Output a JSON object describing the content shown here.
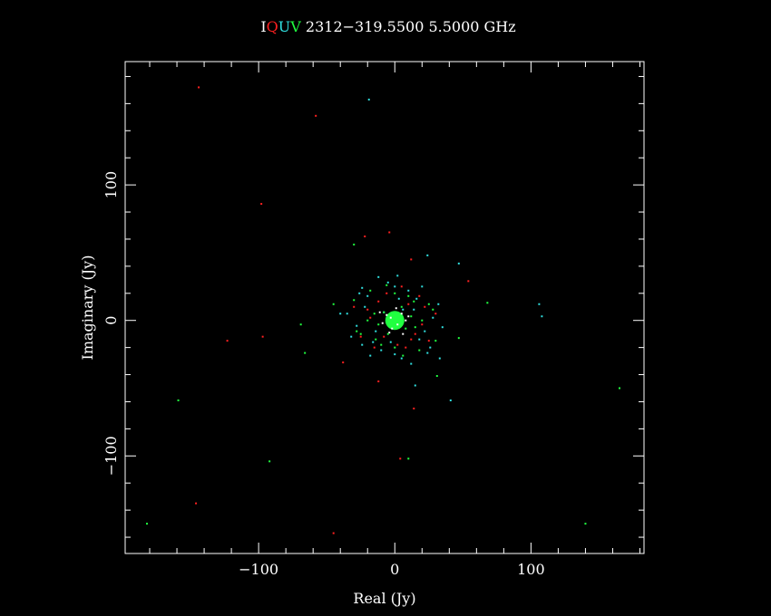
{
  "chart_data": {
    "type": "scatter",
    "title_parts": [
      {
        "text": "I",
        "color": "#ffffff"
      },
      {
        "text": "Q",
        "color": "#ff2020"
      },
      {
        "text": "U",
        "color": "#30e0e0"
      },
      {
        "text": "V",
        "color": "#20ff40"
      },
      {
        "text": " 2312−319.5500 5.5000 GHz",
        "color": "#ffffff"
      }
    ],
    "xlabel": "Real (Jy)",
    "ylabel": "Imaginary (Jy)",
    "xlim": [
      -198,
      183
    ],
    "ylim": [
      -172,
      191
    ],
    "x_ticks": [
      {
        "v": -100,
        "label": "−100"
      },
      {
        "v": 0,
        "label": "0"
      },
      {
        "v": 100,
        "label": "100"
      }
    ],
    "y_ticks": [
      {
        "v": -100,
        "label": "−100"
      },
      {
        "v": 0,
        "label": "0"
      },
      {
        "v": 100,
        "label": "100"
      }
    ],
    "minor_step": 20,
    "grid": false,
    "series": [
      {
        "name": "I",
        "color": "#ffffff",
        "points": [
          [
            -3,
            2
          ],
          [
            2,
            -3
          ],
          [
            -6,
            4
          ],
          [
            5,
            5
          ],
          [
            -2,
            -6
          ],
          [
            8,
            0
          ],
          [
            -9,
            -2
          ],
          [
            1,
            9
          ],
          [
            -4,
            -9
          ],
          [
            10,
            3
          ],
          [
            -11,
            6
          ],
          [
            6,
            -10
          ]
        ]
      },
      {
        "name": "Q",
        "color": "#ff2020",
        "points": [
          [
            -144,
            172
          ],
          [
            -58,
            151
          ],
          [
            -98,
            86
          ],
          [
            -22,
            62
          ],
          [
            -4,
            65
          ],
          [
            12,
            45
          ],
          [
            54,
            29
          ],
          [
            -123,
            -15
          ],
          [
            -97,
            -12
          ],
          [
            -38,
            -31
          ],
          [
            -12,
            -45
          ],
          [
            14,
            -65
          ],
          [
            4,
            -102
          ],
          [
            -146,
            -135
          ],
          [
            -45,
            -157
          ],
          [
            -20,
            8
          ],
          [
            15,
            -10
          ],
          [
            22,
            10
          ],
          [
            8,
            -20
          ],
          [
            -25,
            -12
          ],
          [
            30,
            5
          ],
          [
            -6,
            20
          ],
          [
            18,
            18
          ],
          [
            -15,
            -20
          ],
          [
            5,
            25
          ],
          [
            25,
            -15
          ],
          [
            -30,
            10
          ],
          [
            10,
            12
          ],
          [
            -12,
            14
          ],
          [
            12,
            -14
          ],
          [
            2,
            -18
          ],
          [
            -18,
            2
          ],
          [
            20,
            -3
          ],
          [
            -8,
            -12
          ]
        ]
      },
      {
        "name": "U",
        "color": "#30e0e0",
        "points": [
          [
            -19,
            163
          ],
          [
            24,
            48
          ],
          [
            47,
            42
          ],
          [
            2,
            33
          ],
          [
            106,
            12
          ],
          [
            108,
            3
          ],
          [
            -24,
            -18
          ],
          [
            -40,
            5
          ],
          [
            33,
            -28
          ],
          [
            15,
            -48
          ],
          [
            41,
            -59
          ],
          [
            -20,
            18
          ],
          [
            18,
            -14
          ],
          [
            28,
            2
          ],
          [
            -28,
            -4
          ],
          [
            10,
            22
          ],
          [
            -10,
            -22
          ],
          [
            -22,
            10
          ],
          [
            22,
            -8
          ],
          [
            5,
            -28
          ],
          [
            -5,
            28
          ],
          [
            16,
            16
          ],
          [
            -16,
            -16
          ],
          [
            32,
            12
          ],
          [
            -32,
            -12
          ],
          [
            12,
            -32
          ],
          [
            -12,
            32
          ],
          [
            26,
            -20
          ],
          [
            -26,
            20
          ],
          [
            6,
            8
          ],
          [
            -8,
            6
          ],
          [
            35,
            -5
          ],
          [
            -35,
            5
          ],
          [
            0,
            -25
          ],
          [
            0,
            25
          ],
          [
            20,
            25
          ],
          [
            -18,
            -26
          ],
          [
            14,
            8
          ],
          [
            -14,
            -8
          ],
          [
            3,
            16
          ],
          [
            -3,
            -16
          ],
          [
            24,
            -24
          ],
          [
            -24,
            24
          ]
        ]
      },
      {
        "name": "V",
        "color": "#20ff40",
        "points": [
          [
            -30,
            56
          ],
          [
            68,
            13
          ],
          [
            -69,
            -3
          ],
          [
            -66,
            -24
          ],
          [
            47,
            -13
          ],
          [
            31,
            -41
          ],
          [
            10,
            -102
          ],
          [
            -159,
            -59
          ],
          [
            -92,
            -104
          ],
          [
            -182,
            -150
          ],
          [
            140,
            -150
          ],
          [
            165,
            -50
          ],
          [
            -45,
            12
          ],
          [
            -15,
            5
          ],
          [
            15,
            -5
          ],
          [
            25,
            12
          ],
          [
            -25,
            -10
          ],
          [
            10,
            18
          ],
          [
            -10,
            -18
          ],
          [
            30,
            -15
          ],
          [
            -30,
            15
          ],
          [
            18,
            -22
          ],
          [
            -18,
            22
          ],
          [
            5,
            10
          ],
          [
            -5,
            -10
          ],
          [
            12,
            3
          ],
          [
            -12,
            -3
          ],
          [
            8,
            -6
          ],
          [
            -8,
            6
          ],
          [
            20,
            0
          ],
          [
            -20,
            0
          ],
          [
            0,
            20
          ],
          [
            0,
            -20
          ],
          [
            14,
            14
          ],
          [
            -14,
            -14
          ],
          [
            28,
            8
          ],
          [
            -28,
            -8
          ],
          [
            6,
            -26
          ],
          [
            -6,
            26
          ]
        ]
      }
    ],
    "core_blob": {
      "x": 0,
      "y": 0,
      "radius_data": 7,
      "color": "#20ff40"
    }
  }
}
